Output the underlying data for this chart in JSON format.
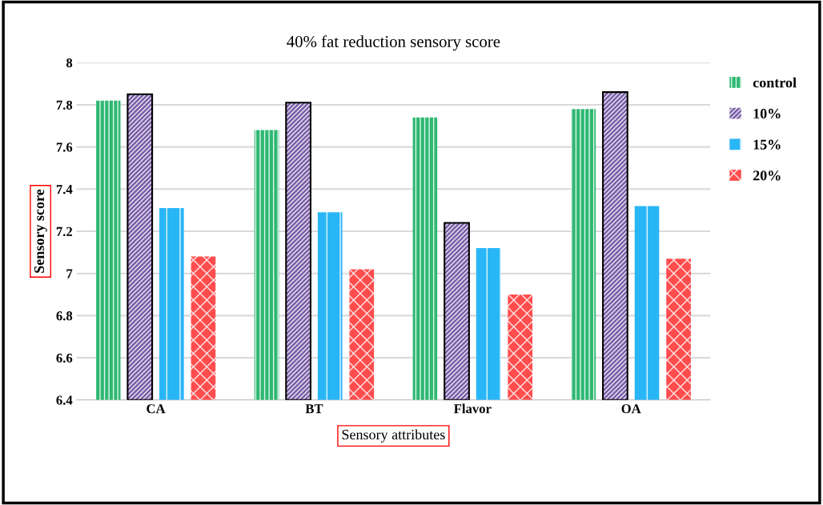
{
  "chart_data": {
    "type": "bar",
    "title": "40% fat reduction sensory score",
    "xlabel": "Sensory attributes",
    "ylabel": "Sensory score",
    "categories": [
      "CA",
      "BT",
      "Flavor",
      "OA"
    ],
    "series": [
      {
        "name": "control",
        "color": "#2eb872",
        "values": [
          7.82,
          7.68,
          7.74,
          7.78
        ]
      },
      {
        "name": "10%",
        "color": "#7b5ea7",
        "values": [
          7.85,
          7.81,
          7.24,
          7.86
        ]
      },
      {
        "name": "15%",
        "color": "#29b6f6",
        "values": [
          7.31,
          7.29,
          7.12,
          7.32
        ]
      },
      {
        "name": "20%",
        "color": "#ff4d4d",
        "values": [
          7.08,
          7.02,
          6.9,
          7.07
        ]
      }
    ],
    "ylim": [
      6.4,
      8
    ],
    "yticks": [
      6.4,
      6.6,
      6.8,
      7,
      7.2,
      7.4,
      7.6,
      7.8,
      8
    ],
    "grid": "y",
    "legend": "right"
  }
}
